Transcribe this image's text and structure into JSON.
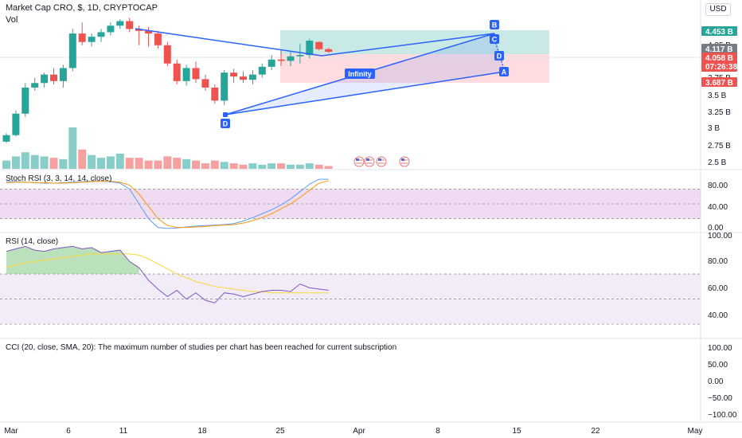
{
  "header": {
    "title": "Market Cap CRO, $, 1D, CRYPTOCAP",
    "vol_label": "Vol",
    "currency": "USD"
  },
  "panes": {
    "stoch_label": "Stoch RSI (3, 3, 14, 14, close)",
    "rsi_label": "RSI (14, close)",
    "cci_label": "CCI (20, close, SMA, 20): The maximum number of studies per chart has been reached for current subscription"
  },
  "price_tags": {
    "target": "4.453 B",
    "last": "4.117 B",
    "current": "4.058 B",
    "countdown": "07:26:38",
    "stop": "3.687 B"
  },
  "pattern": {
    "label": "Infinity",
    "points": [
      "B",
      "C",
      "D",
      "A",
      "D"
    ]
  },
  "colors": {
    "up": "#26a69a",
    "down": "#ef5350",
    "pattern": "#2962ff",
    "target_zone": "#b2dfdb",
    "stop_zone": "#ffcdd2",
    "rsi_band": "#ede7f6",
    "stoch_band": "#e1bee7"
  },
  "chart_data": [
    {
      "type": "candlestick",
      "title": "Market Cap CRO, $, 1D, CRYPTOCAP",
      "ylabel": "",
      "y_ticks": [
        "2.5 B",
        "2.75 B",
        "3 B",
        "3.25 B",
        "3.5 B",
        "3.75 B",
        "4.25 B"
      ],
      "ylim": [
        2.45,
        4.65
      ],
      "x_ticks": [
        "Mar",
        "6",
        "11",
        "18",
        "25",
        "Apr",
        "8",
        "15",
        "22",
        "May"
      ],
      "ohlc": [
        [
          2.72,
          2.85,
          2.7,
          2.82
        ],
        [
          2.82,
          3.2,
          2.8,
          3.15
        ],
        [
          3.15,
          3.62,
          3.1,
          3.55
        ],
        [
          3.55,
          3.7,
          3.5,
          3.62
        ],
        [
          3.62,
          3.78,
          3.55,
          3.75
        ],
        [
          3.75,
          3.85,
          3.6,
          3.65
        ],
        [
          3.65,
          3.9,
          3.55,
          3.85
        ],
        [
          3.85,
          4.45,
          3.8,
          4.38
        ],
        [
          4.38,
          4.55,
          4.2,
          4.25
        ],
        [
          4.25,
          4.38,
          4.18,
          4.33
        ],
        [
          4.33,
          4.45,
          4.25,
          4.4
        ],
        [
          4.4,
          4.55,
          4.35,
          4.5
        ],
        [
          4.5,
          4.6,
          4.45,
          4.57
        ],
        [
          4.57,
          4.62,
          4.4,
          4.45
        ],
        [
          4.45,
          4.5,
          4.2,
          4.42
        ],
        [
          4.42,
          4.48,
          4.18,
          4.38
        ],
        [
          4.38,
          4.42,
          4.15,
          4.2
        ],
        [
          4.2,
          4.25,
          3.88,
          3.92
        ],
        [
          3.92,
          3.98,
          3.6,
          3.65
        ],
        [
          3.65,
          3.9,
          3.58,
          3.85
        ],
        [
          3.85,
          3.95,
          3.62,
          3.68
        ],
        [
          3.68,
          3.75,
          3.5,
          3.55
        ],
        [
          3.55,
          3.6,
          3.3,
          3.35
        ],
        [
          3.35,
          3.82,
          3.28,
          3.78
        ],
        [
          3.78,
          3.84,
          3.62,
          3.72
        ],
        [
          3.72,
          3.8,
          3.62,
          3.67
        ],
        [
          3.67,
          3.82,
          3.6,
          3.75
        ],
        [
          3.75,
          3.92,
          3.7,
          3.87
        ],
        [
          3.87,
          4.05,
          3.82,
          3.98
        ],
        [
          3.98,
          4.12,
          3.88,
          3.96
        ],
        [
          3.96,
          4.1,
          3.88,
          4.03
        ],
        [
          4.03,
          4.22,
          3.92,
          4.05
        ],
        [
          4.05,
          4.3,
          4.0,
          4.27
        ],
        [
          4.25,
          4.26,
          4.12,
          4.14
        ],
        [
          4.14,
          4.16,
          4.08,
          4.1
        ]
      ],
      "volume": [
        6,
        9,
        12,
        10,
        9,
        8,
        7,
        30,
        14,
        10,
        8,
        9,
        11,
        8,
        8,
        6,
        6,
        9,
        8,
        7,
        6,
        4,
        6,
        5,
        4,
        3,
        4,
        3,
        4,
        4,
        3,
        3,
        4,
        3,
        2
      ]
    },
    {
      "type": "line",
      "title": "Stoch RSI (3, 3, 14, 14, close)",
      "y_ticks": [
        "80.00",
        "40.00",
        "0.00"
      ],
      "ylim": [
        -5,
        105
      ],
      "series": [
        {
          "values": [
            95,
            95,
            94,
            93,
            92,
            92,
            93,
            94,
            95,
            96,
            96,
            95,
            92,
            80,
            50,
            20,
            2,
            0,
            1,
            3,
            5,
            6,
            7,
            8,
            10,
            15,
            22,
            30,
            38,
            48,
            60,
            75,
            90,
            100,
            100
          ]
        },
        {
          "values": [
            93,
            94,
            94,
            93,
            93,
            92,
            92,
            93,
            94,
            95,
            96,
            96,
            94,
            88,
            70,
            45,
            20,
            6,
            2,
            2,
            3,
            4,
            6,
            7,
            8,
            11,
            16,
            22,
            30,
            40,
            50,
            63,
            78,
            92,
            97
          ]
        }
      ]
    },
    {
      "type": "line",
      "title": "RSI (14, close)",
      "y_ticks": [
        "100.00",
        "80.00",
        "60.00",
        "40.00"
      ],
      "ylim": [
        25,
        103
      ],
      "series": [
        {
          "values": [
            88,
            90,
            92,
            89,
            88,
            90,
            91,
            92,
            90,
            91,
            87,
            88,
            89,
            80,
            75,
            65,
            58,
            52,
            57,
            50,
            55,
            49,
            47,
            55,
            54,
            52,
            54,
            56,
            57,
            57,
            56,
            62,
            59,
            58,
            57
          ]
        },
        {
          "values": [
            75,
            77,
            79,
            80,
            81,
            82,
            83,
            84,
            85,
            86,
            86,
            86,
            86,
            86,
            85,
            82,
            78,
            74,
            70,
            67,
            64,
            62,
            60,
            59,
            58,
            57,
            56,
            56,
            55,
            55,
            55,
            55,
            55,
            55,
            55
          ]
        }
      ]
    },
    {
      "type": "line",
      "title": "CCI (20, close, SMA, 20): The maximum number of studies per chart has been reached for current subscription",
      "y_ticks": [
        "100.00",
        "50.00",
        "0.00",
        "−50.00",
        "−100.00"
      ],
      "ylim": [
        -110,
        110
      ],
      "series": []
    }
  ]
}
